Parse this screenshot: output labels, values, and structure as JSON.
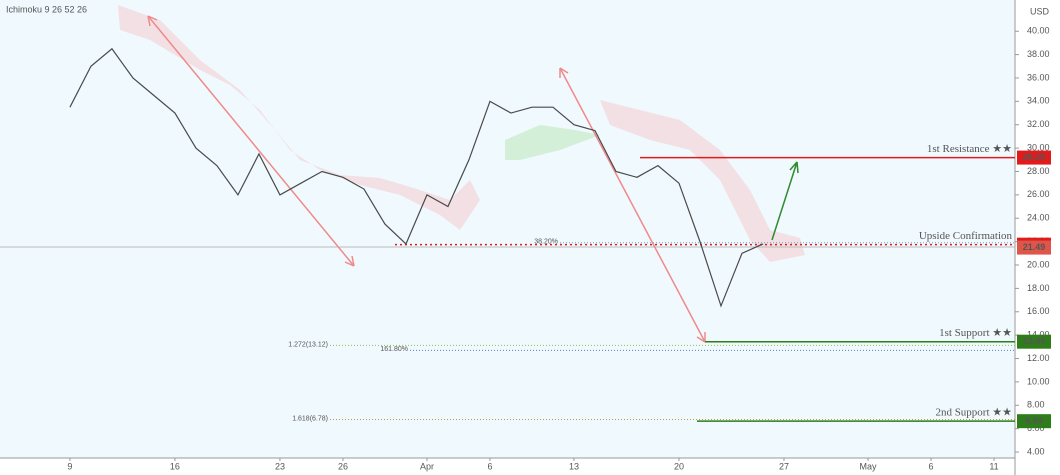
{
  "chart_data": {
    "type": "line",
    "indicator": "Ichimoku 9 26 52 26",
    "currency": "USD",
    "x": [
      0,
      1,
      2,
      3,
      4,
      5,
      6,
      7,
      8,
      9,
      10,
      11,
      12,
      13,
      14,
      15,
      16,
      17,
      18,
      19,
      20,
      21,
      22,
      23,
      24,
      25,
      26,
      27,
      28,
      29,
      30,
      31,
      32,
      33
    ],
    "series": [
      {
        "color": "#4a4a4a",
        "values": [
          33.5,
          37,
          38.5,
          36,
          34.5,
          33,
          30,
          28.5,
          26,
          29.5,
          26,
          27,
          28,
          27.5,
          26.5,
          23.5,
          21.8,
          26,
          25,
          29,
          34,
          33,
          33.5,
          33.5,
          32,
          31.5,
          28,
          27.5,
          28.5,
          27,
          22,
          16.5,
          21,
          21.8
        ]
      }
    ],
    "xlim": [
      -3.33,
      45
    ],
    "xticks": [
      {
        "value": 0,
        "label": "9"
      },
      {
        "value": 5,
        "label": "16"
      },
      {
        "value": 10,
        "label": "23"
      },
      {
        "value": 13,
        "label": "26"
      },
      {
        "value": 17,
        "label": "Apr"
      },
      {
        "value": 20,
        "label": "6"
      },
      {
        "value": 24,
        "label": "13"
      },
      {
        "value": 29,
        "label": "20"
      },
      {
        "value": 34,
        "label": "27"
      },
      {
        "value": 38,
        "label": "May"
      },
      {
        "value": 41,
        "label": "6"
      },
      {
        "value": 44,
        "label": "11"
      }
    ],
    "ylim": [
      3.49,
      42.67
    ],
    "yticks": [
      {
        "value": 4,
        "label": "4.00"
      },
      {
        "value": 6,
        "label": "6.00"
      },
      {
        "value": 8,
        "label": "8.00"
      },
      {
        "value": 10,
        "label": "10.00"
      },
      {
        "value": 12,
        "label": "12.00"
      },
      {
        "value": 14,
        "label": "14.00"
      },
      {
        "value": 16,
        "label": "16.00"
      },
      {
        "value": 18,
        "label": "18.00"
      },
      {
        "value": 20,
        "label": "20.00"
      },
      {
        "value": 22,
        "label": "22.00"
      },
      {
        "value": 24,
        "label": "24.00"
      },
      {
        "value": 26,
        "label": "26.00"
      },
      {
        "value": 28,
        "label": "28.00"
      },
      {
        "value": 30,
        "label": "30.00"
      },
      {
        "value": 32,
        "label": "32.00"
      },
      {
        "value": 34,
        "label": "34.00"
      },
      {
        "value": 36,
        "label": "36.00"
      },
      {
        "value": 38,
        "label": "38.00"
      },
      {
        "value": 40,
        "label": "40.00"
      }
    ],
    "levels": [
      {
        "label": "1st Resistance ★★",
        "value": 29.19,
        "color": "#e01b1b"
      },
      {
        "label": "Upside Confirmation",
        "value": 21.74,
        "color": "#e01b1b"
      },
      {
        "value": 21.49,
        "color": "#e0554a"
      },
      {
        "label": "1st Support ★★",
        "value": 13.44,
        "color": "#2e7d1a"
      },
      {
        "label": "2nd Support ★★",
        "value": 6.64,
        "color": "#2e7d1a"
      }
    ],
    "fib_labels": [
      {
        "label": "38.20%",
        "value": 21.9,
        "color": "#7a9cc6"
      },
      {
        "label": "1.272(13.12)",
        "value": 13.12,
        "color": "#8bc34a"
      },
      {
        "label": "161.80%",
        "value": 12.7,
        "color": "#5b7fc4"
      },
      {
        "label": "1.618(6.78)",
        "value": 6.78,
        "color": "#b5a13a"
      }
    ]
  }
}
